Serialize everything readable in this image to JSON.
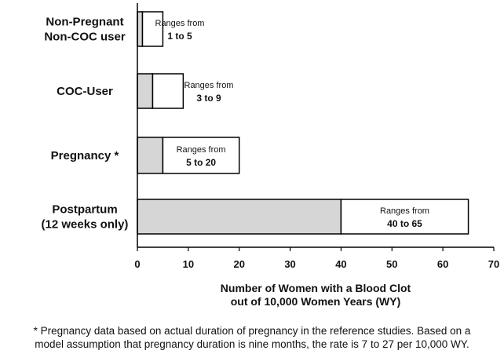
{
  "chart_data": {
    "type": "bar",
    "orientation": "horizontal",
    "categories": [
      [
        "Non-Pregnant",
        "Non-COC user"
      ],
      [
        "COC-User"
      ],
      [
        "Pregnancy *"
      ],
      [
        "Postpartum",
        "(12 weeks only)"
      ]
    ],
    "series": [
      {
        "values": [
          1,
          3,
          5,
          40
        ],
        "color": "#d6d6d6"
      },
      {
        "values": [
          5,
          9,
          20,
          65
        ],
        "color": "#ffffff"
      }
    ],
    "range_labels": [
      {
        "line1": "Ranges from",
        "line2": "1 to 5"
      },
      {
        "line1": "Ranges from",
        "line2": "3 to 9"
      },
      {
        "line1": "Ranges from",
        "line2": "5  to 20"
      },
      {
        "line1": "Ranges from",
        "line2": "40  to 65"
      }
    ],
    "xticks": [
      0,
      10,
      20,
      30,
      40,
      50,
      60,
      70
    ],
    "xlim": [
      0,
      70
    ],
    "xlabel": [
      "Number of Women with a  Blood Clot",
      "out of  10,000 Women Years (WY)"
    ],
    "grid": false
  },
  "footnote": [
    "* Pregnancy data based on actual duration of pregnancy in the reference studies. Based on a",
    "model assumption that pregnancy duration is nine months, the rate is 7 to 27 per 10,000 WY."
  ]
}
